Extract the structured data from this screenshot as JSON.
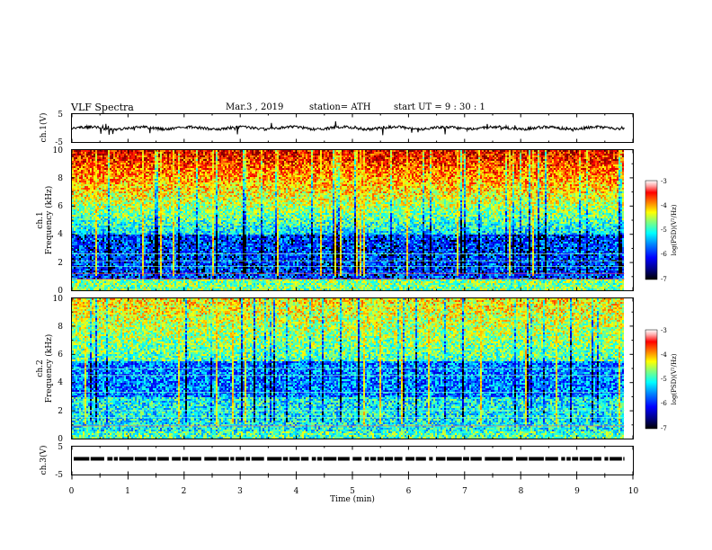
{
  "header": {
    "title": "VLF  Spectra",
    "date": "Mar.3  , 2019",
    "station": "station=  ATH",
    "start_ut": "start  UT  =   9  : 30 : 1"
  },
  "chart_data": [
    {
      "type": "line",
      "panel": "ch1-waveform",
      "ylabel": "ch.1(V)",
      "ylim": [
        -5,
        5
      ],
      "yticks": [
        "5",
        "-5"
      ],
      "xlim": [
        0,
        10
      ]
    },
    {
      "type": "heatmap",
      "panel": "ch1-spectrogram",
      "ylabel": "ch.1\nFrequency  (kHz)",
      "ylabel_lines": [
        "ch.1",
        "Frequency  (kHz)"
      ],
      "ylim": [
        0,
        10
      ],
      "yticks": [
        "0",
        "2",
        "4",
        "6",
        "8",
        "10"
      ],
      "xlim": [
        0,
        9.85
      ],
      "colorbar": {
        "label": "log(PSD)(V²/Hz)",
        "range": [
          -7,
          -3
        ],
        "ticks": [
          "-3",
          "-4",
          "-5",
          "-6",
          "-7"
        ]
      }
    },
    {
      "type": "heatmap",
      "panel": "ch2-spectrogram",
      "ylabel": "ch.2\nFrequency  (kHz)",
      "ylabel_lines": [
        "ch.2",
        "Frequency  (kHz)"
      ],
      "ylim": [
        0,
        10
      ],
      "yticks": [
        "0",
        "2",
        "4",
        "6",
        "8",
        "10"
      ],
      "xlim": [
        0,
        9.85
      ],
      "colorbar": {
        "label": "log(PSD)(V²/Hz)",
        "range": [
          -7,
          -3
        ],
        "ticks": [
          "-3",
          "-4",
          "-5",
          "-6",
          "-7"
        ]
      }
    },
    {
      "type": "line",
      "panel": "ch3-waveform",
      "ylabel": "ch.3(V)",
      "ylim": [
        -5,
        5
      ],
      "yticks": [
        "5",
        "-5"
      ],
      "level": 0,
      "xlim": [
        0,
        10
      ]
    }
  ],
  "xaxis": {
    "label": "Time  (min)",
    "ticks": [
      "0",
      "1",
      "2",
      "3",
      "4",
      "5",
      "6",
      "7",
      "8",
      "9",
      "10"
    ],
    "range": [
      0,
      10
    ]
  },
  "colors": {
    "jet": [
      "#00007f",
      "#0000ff",
      "#007fff",
      "#00ffff",
      "#7fff7f",
      "#ffff00",
      "#ff7f00",
      "#ff0000",
      "#7f0000"
    ]
  }
}
